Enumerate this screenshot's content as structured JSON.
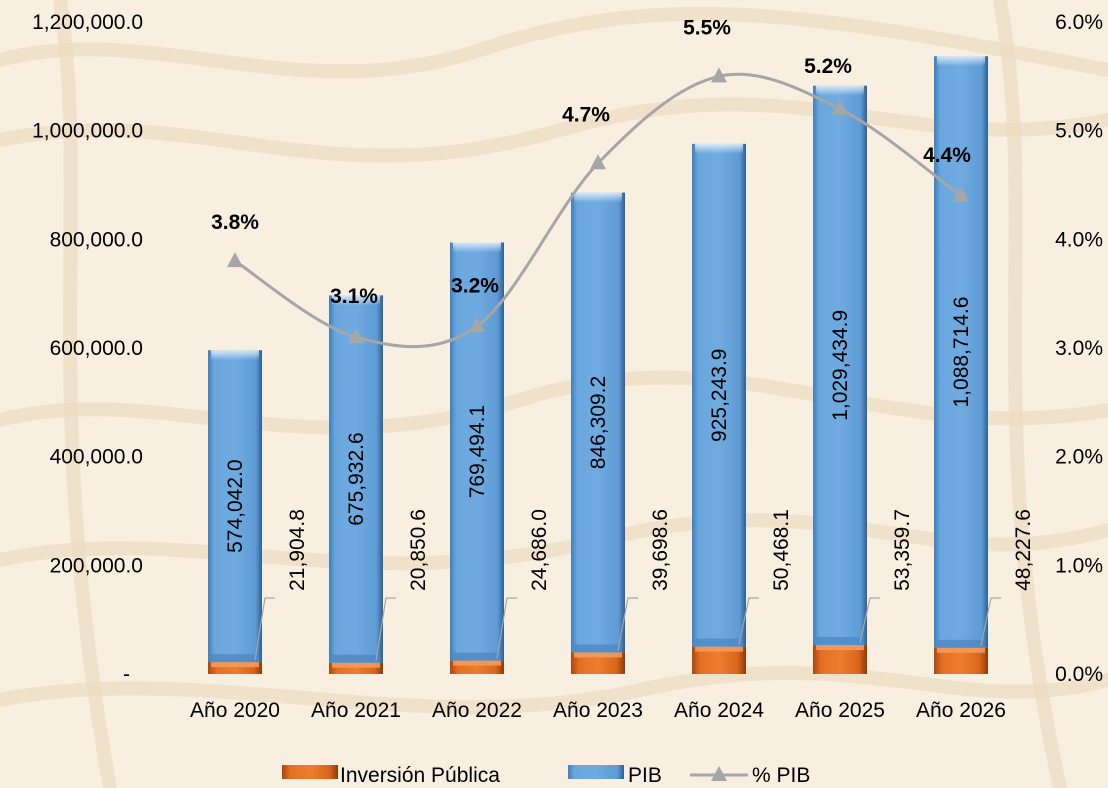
{
  "chart_data": {
    "type": "bar",
    "categories": [
      "Año 2020",
      "Año 2021",
      "Año 2022",
      "Año 2023",
      "Año 2024",
      "Año 2025",
      "Año 2026"
    ],
    "series": [
      {
        "name": "Inversión Pública",
        "type": "bar",
        "axis": "left",
        "values": [
          21904.8,
          20850.6,
          24686.0,
          39698.6,
          50468.1,
          53359.7,
          48227.6
        ],
        "labels": [
          "21,904.8",
          "20,850.6",
          "24,686.0",
          "39,698.6",
          "50,468.1",
          "53,359.7",
          "48,227.6"
        ],
        "color": "#d2601a"
      },
      {
        "name": "PIB",
        "type": "bar",
        "axis": "left",
        "values": [
          574042.0,
          675932.6,
          769494.1,
          846309.2,
          925243.9,
          1029434.9,
          1088714.6
        ],
        "labels": [
          "574,042.0",
          "675,932.6",
          "769,494.1",
          "846,309.2",
          "925,243.9",
          "1,029,434.9",
          "1,088,714.6"
        ],
        "color": "#5b9bd5"
      },
      {
        "name": "% PIB",
        "type": "line",
        "axis": "right",
        "values": [
          3.8,
          3.1,
          3.2,
          4.7,
          5.5,
          5.2,
          4.4
        ],
        "labels": [
          "3.8%",
          "3.1%",
          "3.2%",
          "4.7%",
          "5.5%",
          "5.2%",
          "4.4%"
        ],
        "color": "#a6a6a6"
      }
    ],
    "stacked": true,
    "y_left": {
      "ylim": [
        0,
        1200000
      ],
      "ticks": [
        "-",
        "200,000.0",
        "400,000.0",
        "600,000.0",
        "800,000.0",
        "1,000,000.0",
        "1,200,000.0"
      ]
    },
    "y_right": {
      "ylim": [
        0,
        6
      ],
      "ticks": [
        "0.0%",
        "1.0%",
        "2.0%",
        "3.0%",
        "4.0%",
        "5.0%",
        "6.0%"
      ]
    },
    "legend": {
      "position": "bottom",
      "items": [
        "Inversión Pública",
        "PIB",
        "% PIB"
      ]
    },
    "grid": false
  }
}
